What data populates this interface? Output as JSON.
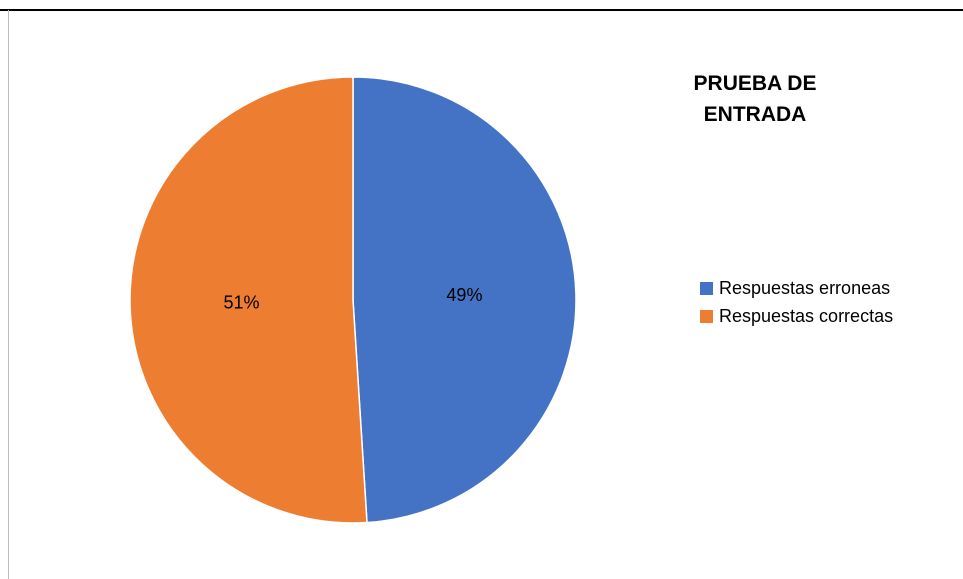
{
  "chart_data": {
    "type": "pie",
    "title_lines": [
      "PRUEBA DE",
      "ENTRADA"
    ],
    "slices": [
      {
        "label": "Respuestas erroneas",
        "value": 49,
        "display": "49%",
        "color": "#4472c4"
      },
      {
        "label": "Respuestas correctas",
        "value": 51,
        "display": "51%",
        "color": "#ed7d31"
      }
    ],
    "legend_position": "right"
  }
}
